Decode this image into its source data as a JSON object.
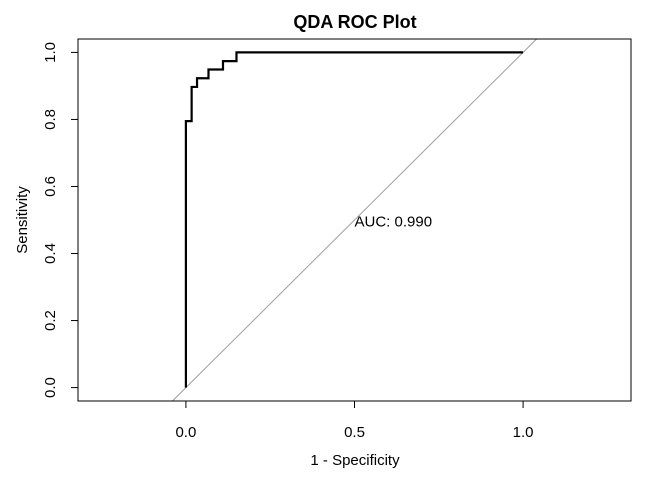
{
  "chart_data": {
    "type": "line",
    "title": "QDA ROC Plot",
    "xlabel": "1 - Specificity",
    "ylabel": "Sensitivity",
    "xlim": [
      -0.32,
      1.32
    ],
    "ylim": [
      -0.04,
      1.04
    ],
    "x_ticks": [
      0.0,
      0.5,
      1.0
    ],
    "x_tick_labels": [
      "0.0",
      "0.5",
      "1.0"
    ],
    "y_ticks": [
      0.0,
      0.2,
      0.4,
      0.6,
      0.8,
      1.0
    ],
    "y_tick_labels": [
      "0.0",
      "0.2",
      "0.4",
      "0.6",
      "0.8",
      "1.0"
    ],
    "grid": false,
    "legend": "none",
    "annotation": {
      "text": "AUC: 0.990",
      "x": 0.5,
      "y": 0.48
    },
    "reference_line": {
      "intercept": 0,
      "slope": 1,
      "color": "#9e9e9e"
    },
    "series": [
      {
        "color": "#000000",
        "x": [
          0.0,
          0.0,
          0.0,
          0.0,
          0.0,
          0.0,
          0.0,
          0.0,
          0.017,
          0.017,
          0.017,
          0.017,
          0.017,
          0.033,
          0.033,
          0.067,
          0.067,
          0.067,
          0.067,
          0.11,
          0.11,
          0.11,
          0.11,
          0.15,
          0.15,
          1.0
        ],
        "y": [
          0.0,
          0.1,
          0.2,
          0.3,
          0.4,
          0.5,
          0.6,
          0.795,
          0.795,
          0.82,
          0.85,
          0.875,
          0.897,
          0.897,
          0.923,
          0.923,
          0.93,
          0.94,
          0.949,
          0.949,
          0.96,
          0.974,
          0.974,
          0.974,
          1.0,
          1.0
        ]
      }
    ]
  }
}
